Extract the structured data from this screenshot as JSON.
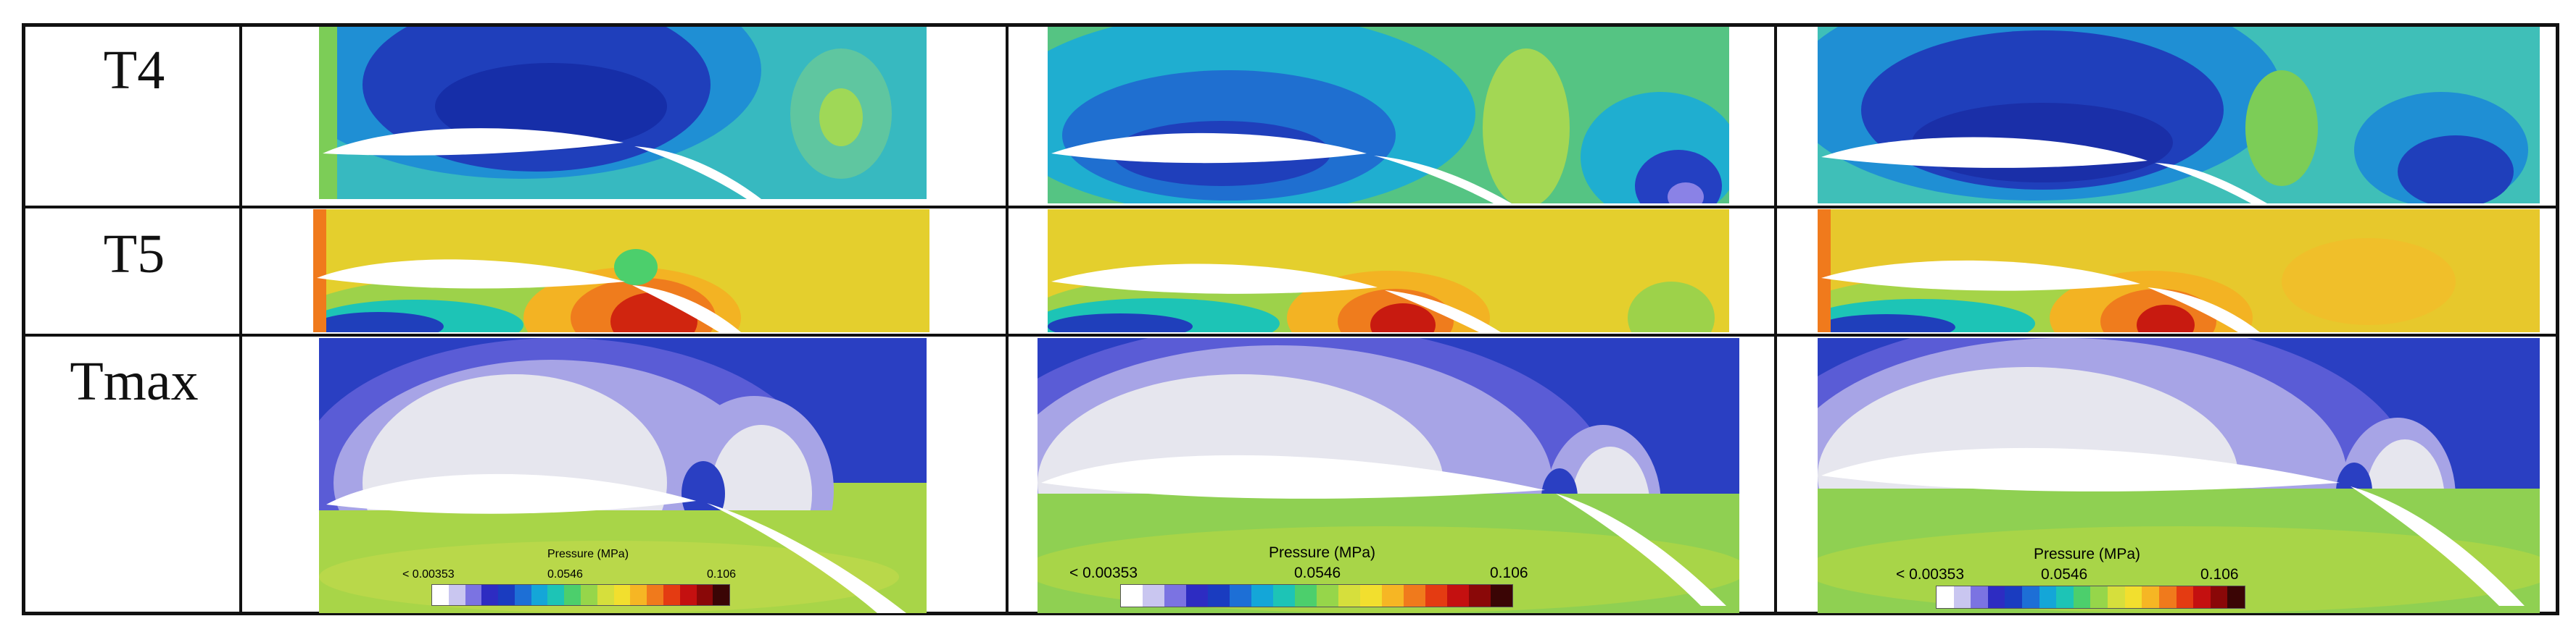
{
  "rows": [
    {
      "label": "T4"
    },
    {
      "label": "T5"
    },
    {
      "label": "Tmax"
    }
  ],
  "legend": {
    "title": "Pressure (MPa)",
    "min_label": "< 0.00353",
    "mid_label": "0.0546",
    "max_label": "0.106",
    "colors": [
      "#ffffff",
      "#c9c6f0",
      "#7b73e2",
      "#2d2cc2",
      "#1a3cc0",
      "#1d6fd6",
      "#14a6d8",
      "#1dc4b6",
      "#4ccf6c",
      "#96d64a",
      "#d6df3c",
      "#f2df2e",
      "#f6b624",
      "#f07a1c",
      "#e43b12",
      "#c41010",
      "#8a0808",
      "#3a0505"
    ]
  },
  "palette": {
    "t4_bg": "#37b9c0",
    "t4_dark": "#1f3fbb",
    "t4_mid": "#1f8fd4",
    "t4_green": "#7ccd57",
    "t5_bg": "#e4cf2d",
    "t5_orange": "#f18a1c",
    "t5_red": "#c81a10",
    "t5_blue": "#2530b8",
    "tmax_bg": "#2a3fc2",
    "tmax_light": "#e6e6ee",
    "tmax_lav": "#a7a4e6",
    "tmax_green": "#a8d548"
  }
}
